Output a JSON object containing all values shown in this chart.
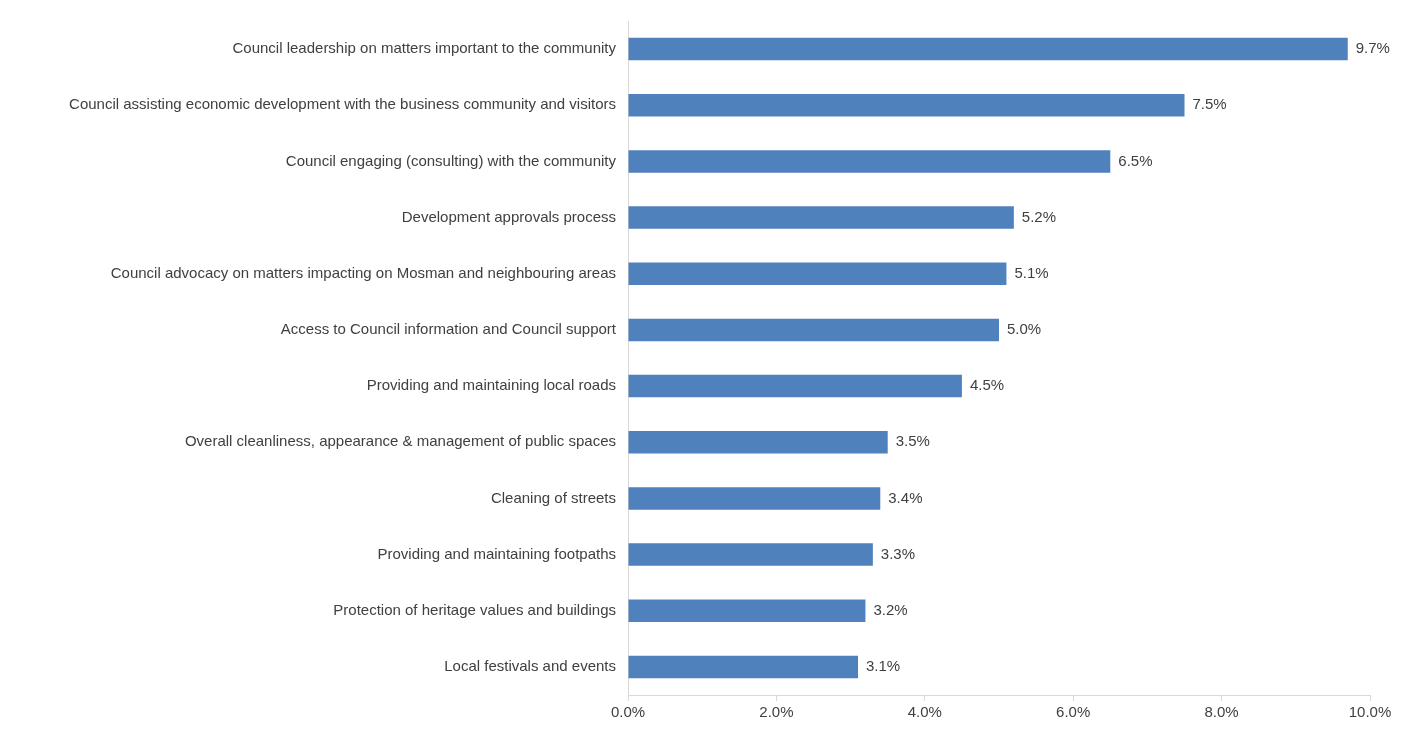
{
  "chart_data": {
    "type": "bar",
    "orientation": "horizontal",
    "categories": [
      "Council leadership on matters important to the community",
      "Council assisting economic development with the business community and visitors",
      "Council engaging (consulting) with the community",
      "Development approvals process",
      "Council advocacy on matters impacting on Mosman and neighbouring areas",
      "Access to Council information and Council support",
      "Providing and maintaining local roads",
      "Overall cleanliness, appearance & management of public spaces",
      "Cleaning of streets",
      "Providing and maintaining footpaths",
      "Protection of heritage values and buildings",
      "Local festivals and events"
    ],
    "values": [
      9.7,
      7.5,
      6.5,
      5.2,
      5.1,
      5.0,
      4.5,
      3.5,
      3.4,
      3.3,
      3.2,
      3.1
    ],
    "value_labels": [
      "9.7%",
      "7.5%",
      "6.5%",
      "5.2%",
      "5.1%",
      "5.0%",
      "4.5%",
      "3.5%",
      "3.4%",
      "3.3%",
      "3.2%",
      "3.1%"
    ],
    "color": "#4f81bd",
    "xlim": [
      0,
      10
    ],
    "xticks": [
      {
        "value": 0,
        "label": "0.0%"
      },
      {
        "value": 2,
        "label": "2.0%"
      },
      {
        "value": 4,
        "label": "4.0%"
      },
      {
        "value": 6,
        "label": "6.0%"
      },
      {
        "value": 8,
        "label": "8.0%"
      },
      {
        "value": 10,
        "label": "10.0%"
      }
    ]
  }
}
